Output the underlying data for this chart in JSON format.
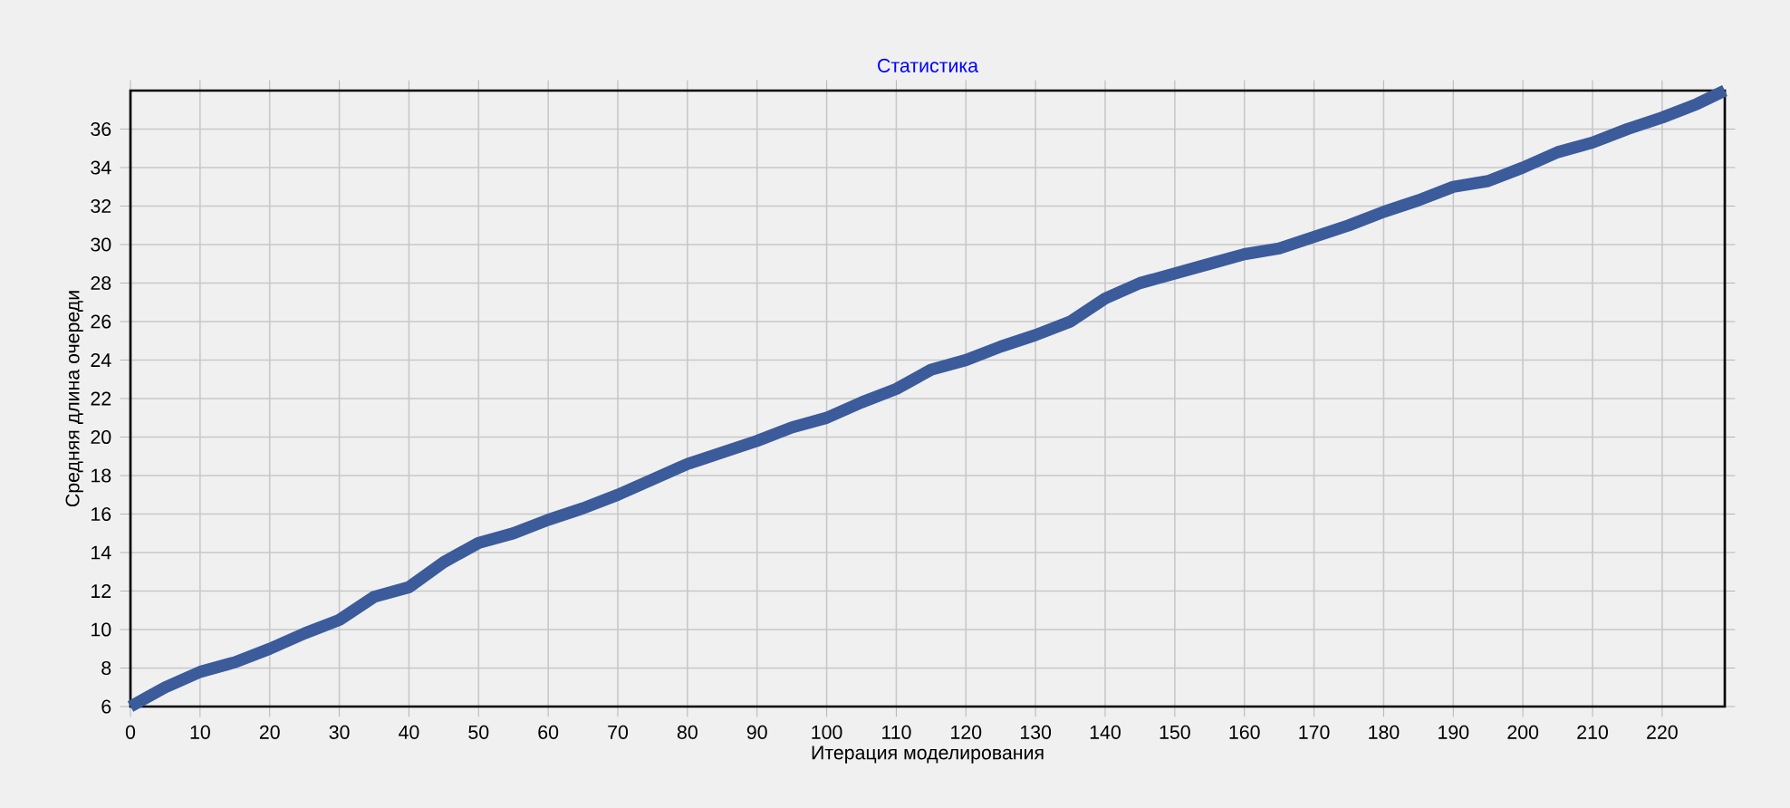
{
  "chart_data": {
    "type": "line",
    "title": "Статистика",
    "xlabel": "Итерация моделирования",
    "ylabel": "Средняя длина очереди",
    "x": [
      0,
      5,
      10,
      15,
      20,
      25,
      30,
      35,
      40,
      45,
      50,
      55,
      60,
      65,
      70,
      75,
      80,
      85,
      90,
      95,
      100,
      105,
      110,
      115,
      120,
      125,
      130,
      135,
      140,
      145,
      150,
      155,
      160,
      165,
      170,
      175,
      180,
      185,
      190,
      195,
      200,
      205,
      210,
      215,
      220,
      225,
      229
    ],
    "series": [
      {
        "color": "#3b5b9b",
        "values": [
          6,
          7,
          7.8,
          8.3,
          9,
          9.8,
          10.5,
          11.7,
          12.2,
          13.5,
          14.5,
          15,
          15.7,
          16.3,
          17,
          17.8,
          18.6,
          19.2,
          19.8,
          20.5,
          21,
          21.8,
          22.5,
          23.5,
          24,
          24.7,
          25.3,
          26,
          27.2,
          28,
          28.5,
          29,
          29.5,
          29.8,
          30.4,
          31,
          31.7,
          32.3,
          33,
          33.3,
          34,
          34.8,
          35.3,
          36,
          36.6,
          37.3,
          38
        ]
      }
    ],
    "xlim": [
      0,
      229
    ],
    "ylim": [
      6,
      38
    ],
    "xticks": [
      0,
      10,
      20,
      30,
      40,
      50,
      60,
      70,
      80,
      90,
      100,
      110,
      120,
      130,
      140,
      150,
      160,
      170,
      180,
      190,
      200,
      210,
      220
    ],
    "yticks": [
      6,
      8,
      10,
      12,
      14,
      16,
      18,
      20,
      22,
      24,
      26,
      28,
      30,
      32,
      34,
      36
    ],
    "grid": true,
    "marker": "none",
    "line_style": "solid"
  }
}
